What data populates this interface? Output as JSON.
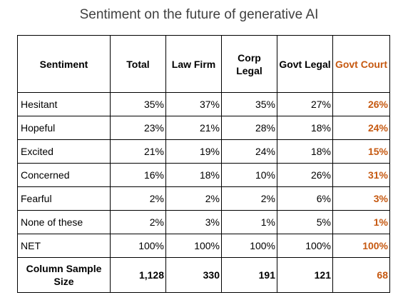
{
  "title": "Sentiment on the future of generative AI",
  "accent_color": "#c65911",
  "table": {
    "headers": [
      "Sentiment",
      "Total",
      "Law Firm",
      "Corp Legal",
      "Govt Legal",
      "Govt Court"
    ],
    "rows": [
      {
        "label": "Hesitant",
        "values": [
          "35%",
          "37%",
          "35%",
          "27%",
          "26%"
        ]
      },
      {
        "label": "Hopeful",
        "values": [
          "23%",
          "21%",
          "28%",
          "18%",
          "24%"
        ]
      },
      {
        "label": "Excited",
        "values": [
          "21%",
          "19%",
          "24%",
          "18%",
          "15%"
        ]
      },
      {
        "label": "Concerned",
        "values": [
          "16%",
          "18%",
          "10%",
          "26%",
          "31%"
        ]
      },
      {
        "label": "Fearful",
        "values": [
          "2%",
          "2%",
          "2%",
          "6%",
          "3%"
        ]
      },
      {
        "label": "None of these",
        "values": [
          "2%",
          "3%",
          "1%",
          "5%",
          "1%"
        ]
      },
      {
        "label": "NET",
        "values": [
          "100%",
          "100%",
          "100%",
          "100%",
          "100%"
        ]
      }
    ],
    "sample": {
      "label": "Column Sample Size",
      "values": [
        "1,128",
        "330",
        "191",
        "121",
        "68"
      ]
    }
  }
}
